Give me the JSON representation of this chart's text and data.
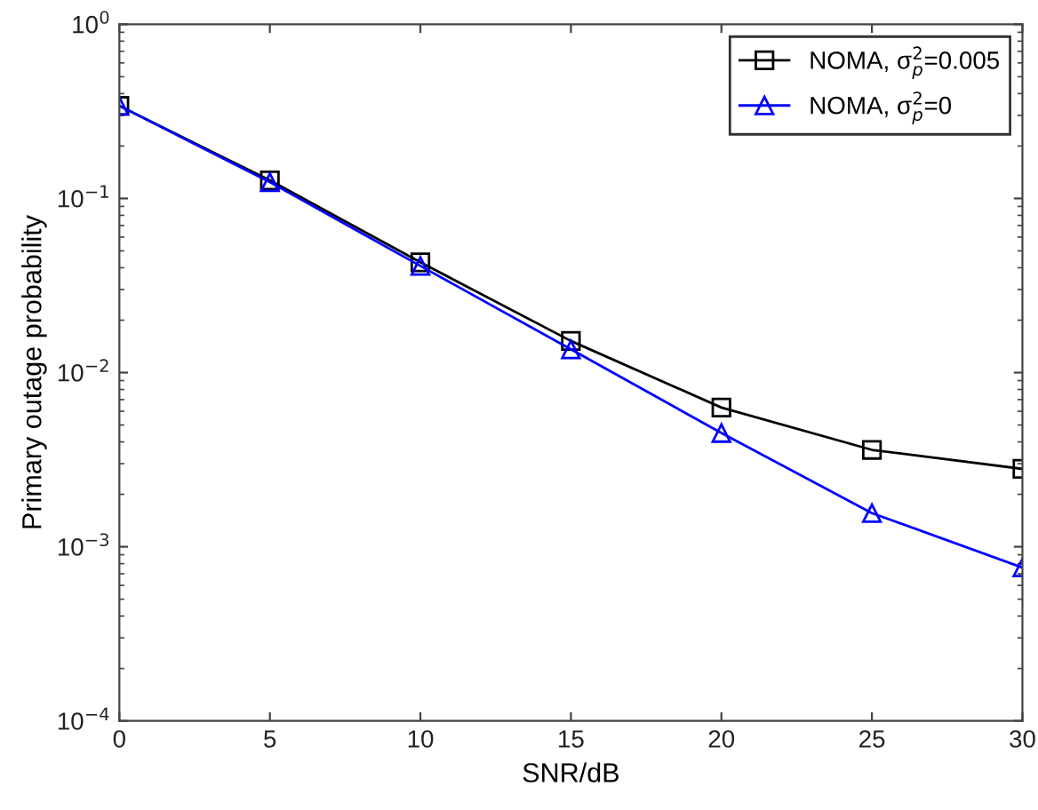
{
  "chart_data": {
    "type": "line",
    "xlabel": "SNR/dB",
    "ylabel": "Primary outage probability",
    "log": "y",
    "x": [
      0,
      5,
      10,
      15,
      20,
      25,
      30
    ],
    "series": [
      {
        "name": "NOMA, σ$^{2}$$_{p}$=0.005",
        "color": "#000000",
        "marker": "square",
        "values": [
          0.34,
          0.127,
          0.043,
          0.0152,
          0.0063,
          0.0036,
          0.0028
        ]
      },
      {
        "name": "NOMA, σ$^{2}$$_{p}$=0",
        "color": "#0000ff",
        "marker": "triangle",
        "values": [
          0.34,
          0.124,
          0.041,
          0.0136,
          0.0045,
          0.00156,
          0.00076
        ]
      }
    ],
    "xlim": [
      0,
      30
    ],
    "xticks": [
      0,
      5,
      10,
      15,
      20,
      25,
      30
    ],
    "ylim": [
      0.0001,
      1
    ],
    "yticks": [
      {
        "value": 0.0001,
        "label": "10$^{−4}$"
      },
      {
        "value": 0.001,
        "label": "10$^{−3}$"
      },
      {
        "value": 0.01,
        "label": "10$^{−2}$"
      },
      {
        "value": 0.1,
        "label": "10$^{−1}$"
      },
      {
        "value": 1,
        "label": "10$^{0}$"
      }
    ],
    "legend": "top right",
    "grid": false,
    "line_style": "solid"
  }
}
